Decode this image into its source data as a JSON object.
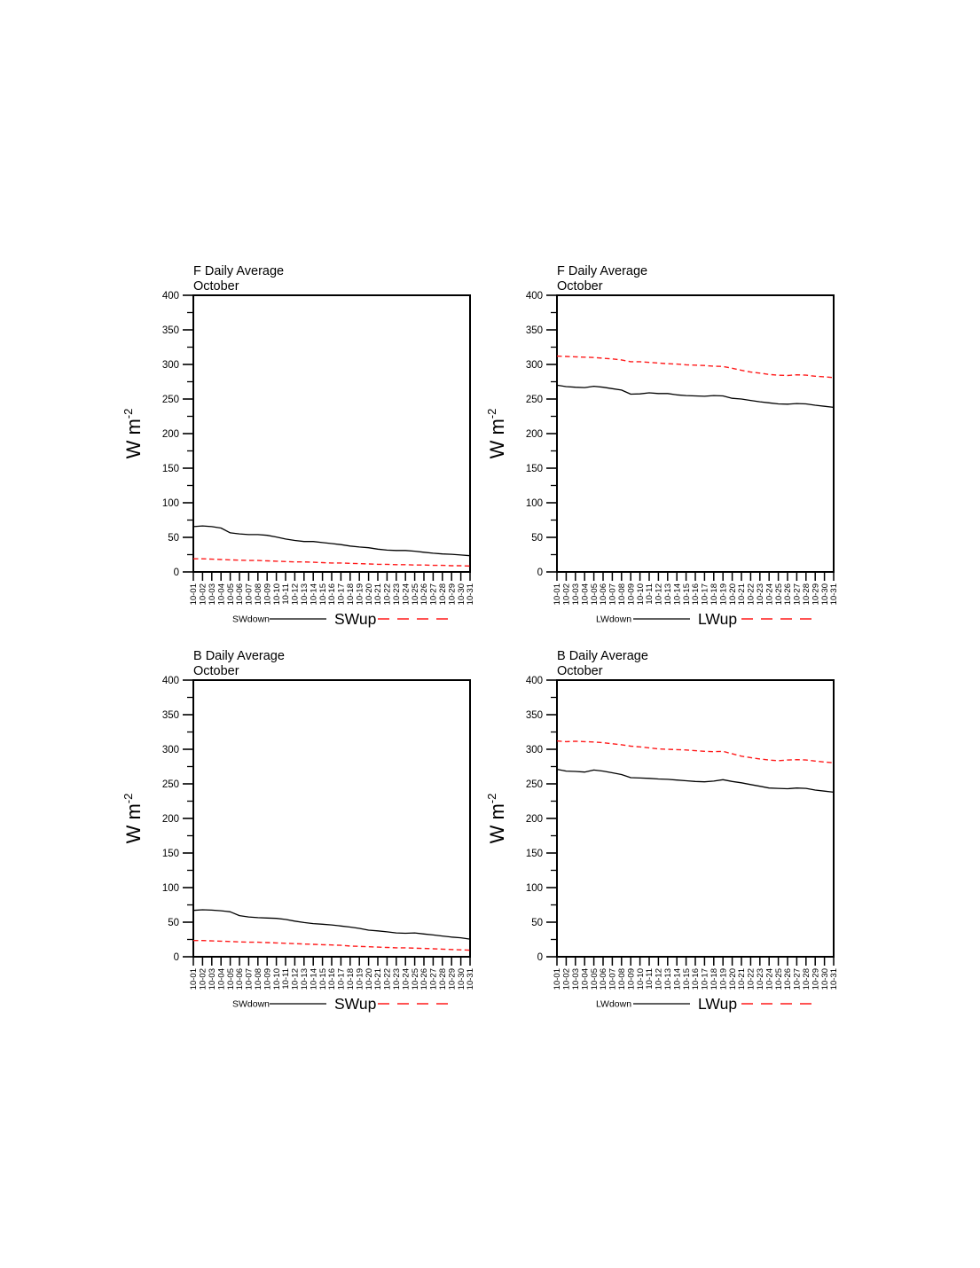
{
  "figure": {
    "background": "#ffffff",
    "axis_color": "#000000",
    "text_color": "#000000"
  },
  "chart_data": {
    "type": "line",
    "grid": false,
    "legend_position": "bottom",
    "ylabel_base": "W m",
    "ylabel_exponent": "-2",
    "ylim": [
      0,
      400
    ],
    "y_major_ticks": [
      400,
      350,
      300,
      250,
      200,
      150,
      100,
      50,
      0
    ],
    "y_minor_step": 25,
    "categories": [
      "10-01",
      "10-02",
      "10-03",
      "10-04",
      "10-05",
      "10-06",
      "10-07",
      "10-08",
      "10-09",
      "10-10",
      "10-11",
      "10-12",
      "10-13",
      "10-14",
      "10-15",
      "10-16",
      "10-17",
      "10-18",
      "10-19",
      "10-20",
      "10-21",
      "10-22",
      "10-23",
      "10-24",
      "10-25",
      "10-26",
      "10-27",
      "10-28",
      "10-29",
      "10-30",
      "10-31"
    ],
    "charts": [
      {
        "title": "F Daily Average",
        "subtitle": "October",
        "series": [
          {
            "name": "SWdown",
            "style": "solid",
            "color": "#000000",
            "values": [
              65.5,
              66.5,
              65.5,
              63.5,
              56.5,
              55,
              54,
              54,
              53,
              50.5,
              47.5,
              45.5,
              44,
              44,
              42.5,
              41,
              39.5,
              37.5,
              36,
              35,
              33,
              31.5,
              31,
              31,
              30,
              28.5,
              27,
              26,
              25.5,
              24.5,
              23.5
            ]
          },
          {
            "name": "SWup",
            "style": "dashed",
            "color": "#ff1a1a",
            "values": [
              19,
              19,
              18.5,
              18,
              17.5,
              17,
              16.5,
              16.5,
              16,
              15.5,
              15,
              14.5,
              14.5,
              14,
              13.5,
              13,
              13,
              12.5,
              12,
              11.5,
              11,
              11,
              10.5,
              10.5,
              10,
              10,
              9.5,
              9.5,
              9,
              9,
              8.5
            ]
          }
        ]
      },
      {
        "title": "F Daily Average",
        "subtitle": "October",
        "series": [
          {
            "name": "LWdown",
            "style": "solid",
            "color": "#000000",
            "values": [
              270,
              268,
              267,
              266.5,
              268.5,
              267,
              265,
              263,
              257,
              257.5,
              259,
              258,
              258,
              256,
              255,
              254.5,
              254,
              255,
              254.5,
              251,
              250,
              248,
              246,
              244.5,
              243,
              242.5,
              243.5,
              243,
              241,
              239.5,
              238
            ]
          },
          {
            "name": "LWup",
            "style": "dashed",
            "color": "#ff1a1a",
            "values": [
              312,
              311.5,
              311,
              310.5,
              310,
              309,
              308,
              306.5,
              304,
              304,
              303,
              302,
              301,
              300.5,
              299.5,
              299,
              298.5,
              297.5,
              297,
              294.5,
              291.5,
              289,
              287.5,
              285.5,
              284.5,
              284,
              285,
              284.5,
              283,
              282,
              281
            ]
          }
        ]
      },
      {
        "title": "B Daily Average",
        "subtitle": "October",
        "series": [
          {
            "name": "SWdown",
            "style": "solid",
            "color": "#000000",
            "values": [
              67,
              68,
              67.5,
              66.5,
              65,
              59.5,
              57.5,
              56.5,
              56,
              55.5,
              54,
              51.5,
              49.5,
              48,
              47,
              46,
              44.5,
              43,
              41,
              38.5,
              37.5,
              36,
              34.5,
              34,
              34.5,
              33,
              31.5,
              30,
              28.5,
              27.5,
              25.5
            ]
          },
          {
            "name": "SWup",
            "style": "dashed",
            "color": "#ff1a1a",
            "values": [
              23.5,
              23.5,
              23,
              22.5,
              22,
              21.5,
              21,
              21,
              20.5,
              20,
              19.5,
              19,
              18.5,
              18,
              17.5,
              17,
              16.5,
              15.5,
              15,
              14.5,
              14,
              13.5,
              13,
              13,
              12.5,
              12,
              11.5,
              11,
              10.5,
              10,
              9.5
            ]
          }
        ]
      },
      {
        "title": "B Daily Average",
        "subtitle": "October",
        "series": [
          {
            "name": "LWdown",
            "style": "solid",
            "color": "#000000",
            "values": [
              271,
              268.5,
              268,
              267,
              270,
              268.5,
              266,
              263.5,
              259,
              258.5,
              258,
              257,
              256.5,
              255.5,
              254.5,
              253.5,
              253,
              254,
              256,
              253.5,
              251.5,
              249,
              246.5,
              244,
              243.5,
              243,
              244,
              243.5,
              241,
              239.5,
              238
            ]
          },
          {
            "name": "LWup",
            "style": "dashed",
            "color": "#ff1a1a",
            "values": [
              312,
              311,
              311.5,
              311,
              310.5,
              309.5,
              308,
              306.5,
              304.5,
              303.5,
              302,
              300.5,
              300,
              299.5,
              299,
              298,
              297,
              296.5,
              297,
              293.5,
              290,
              288,
              286,
              284.5,
              283.5,
              284.5,
              285,
              284.5,
              283,
              281.5,
              280.5
            ]
          }
        ]
      }
    ]
  }
}
